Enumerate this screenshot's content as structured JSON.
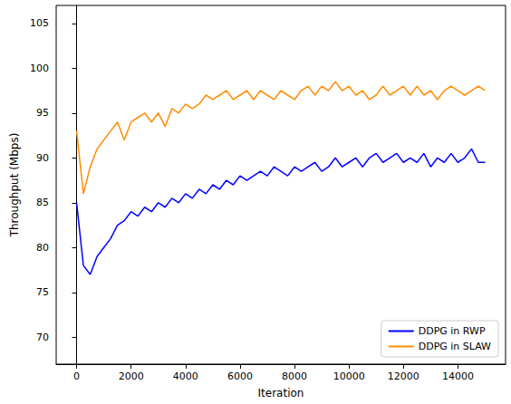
{
  "chart_data": {
    "type": "line",
    "xlabel": "Iteration",
    "ylabel": "Throughput (Mbps)",
    "x": [
      0,
      250,
      500,
      750,
      1000,
      1250,
      1500,
      1750,
      2000,
      2250,
      2500,
      2750,
      3000,
      3250,
      3500,
      3750,
      4000,
      4250,
      4500,
      4750,
      5000,
      5250,
      5500,
      5750,
      6000,
      6250,
      6500,
      6750,
      7000,
      7250,
      7500,
      7750,
      8000,
      8250,
      8500,
      8750,
      9000,
      9250,
      9500,
      9750,
      10000,
      10250,
      10500,
      10750,
      11000,
      11250,
      11500,
      11750,
      12000,
      12250,
      12500,
      12750,
      13000,
      13250,
      13500,
      13750,
      14000,
      14250,
      14500,
      14750,
      15000
    ],
    "series": [
      {
        "name": "DDPG in RWP",
        "color": "#0000ff",
        "values": [
          85,
          78,
          77,
          79,
          80,
          81,
          82.5,
          83,
          84,
          83.5,
          84.5,
          84,
          85,
          84.5,
          85.5,
          85,
          86,
          85.5,
          86.5,
          86,
          87,
          86.5,
          87.5,
          87,
          88,
          87.5,
          88,
          88.5,
          88,
          89,
          88.5,
          88,
          89,
          88.5,
          89,
          89.5,
          88.5,
          89,
          90,
          89,
          89.5,
          90,
          89,
          90,
          90.5,
          89.5,
          90,
          90.5,
          89.5,
          90,
          89.5,
          90.5,
          89,
          90,
          89.5,
          90.5,
          89.5,
          90,
          91,
          89.5,
          89.5
        ]
      },
      {
        "name": "DDPG in SLAW",
        "color": "#ff8c00",
        "values": [
          93,
          86,
          89,
          91,
          92,
          93,
          94,
          92,
          94,
          94.5,
          95,
          94,
          95,
          93.5,
          95.5,
          95,
          96,
          95.5,
          96,
          97,
          96.5,
          97,
          97.5,
          96.5,
          97,
          97.5,
          96.5,
          97.5,
          97,
          96.5,
          97.5,
          97,
          96.5,
          97.5,
          98,
          97,
          98,
          97.5,
          98.5,
          97.5,
          98,
          97,
          97.5,
          96.5,
          97,
          98,
          97,
          97.5,
          98,
          97,
          98,
          97,
          97.5,
          96.5,
          97.5,
          98,
          97.5,
          97,
          97.5,
          98,
          97.5
        ]
      }
    ],
    "xlim": [
      -750,
      15750
    ],
    "xticks": [
      0,
      2000,
      4000,
      6000,
      8000,
      10000,
      12000,
      14000
    ],
    "ylim": [
      67,
      107
    ],
    "yticks": [
      70,
      75,
      80,
      85,
      90,
      95,
      100,
      105
    ],
    "grid": false,
    "legend": "lower right"
  }
}
